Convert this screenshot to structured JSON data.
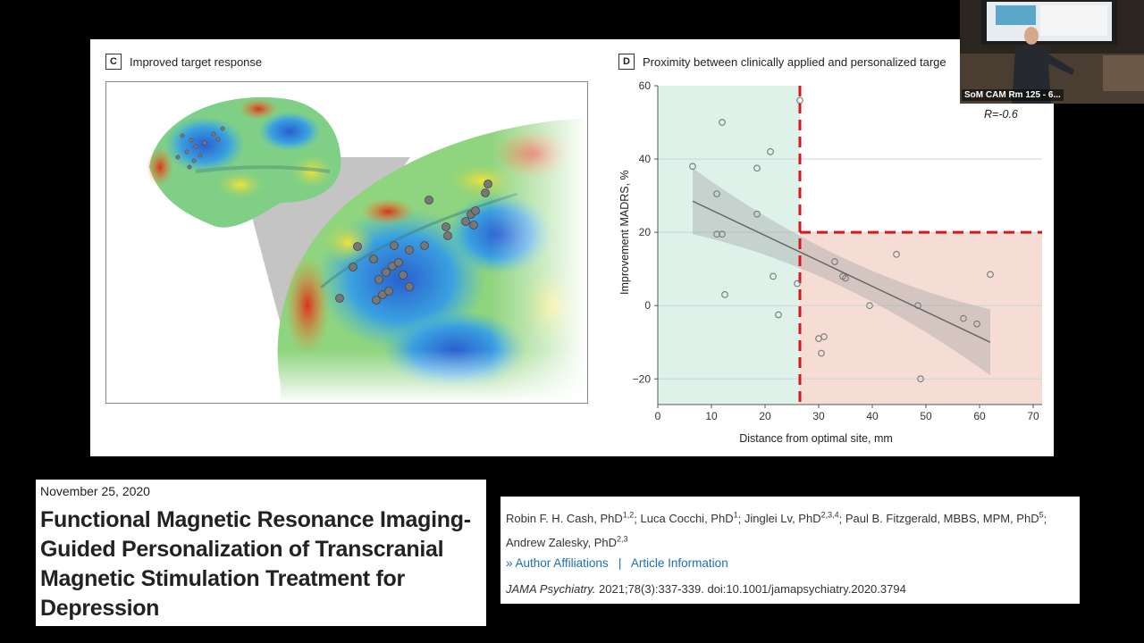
{
  "panel_c": {
    "letter": "C",
    "title": "Improved target response"
  },
  "panel_d": {
    "letter": "D",
    "title": "Proximity between clinically applied and personalized targe"
  },
  "chart_data": {
    "type": "scatter",
    "title": "Proximity between clinically applied and personalized targe",
    "xlabel": "Distance from optimal site, mm",
    "ylabel": "Improvement MADRS, %",
    "xlim": [
      0,
      70
    ],
    "ylim": [
      -27,
      60
    ],
    "xticks": [
      "0",
      "10",
      "20",
      "30",
      "40",
      "50",
      "60",
      "70"
    ],
    "yticks": [
      "-20",
      "0",
      "20",
      "40",
      "60"
    ],
    "grid": "horizontal",
    "annotation": "R=-0.6",
    "threshold_x": 26.5,
    "threshold_y": 20,
    "regression": {
      "x": [
        6.5,
        62
      ],
      "y": [
        28.5,
        -10
      ]
    },
    "points": [
      {
        "x": 6.5,
        "y": 38
      },
      {
        "x": 12,
        "y": 50
      },
      {
        "x": 11,
        "y": 30.5
      },
      {
        "x": 11,
        "y": 19.5
      },
      {
        "x": 12,
        "y": 19.5
      },
      {
        "x": 12.5,
        "y": 3
      },
      {
        "x": 18.5,
        "y": 37.5
      },
      {
        "x": 21,
        "y": 42
      },
      {
        "x": 18.5,
        "y": 25
      },
      {
        "x": 21.5,
        "y": 8
      },
      {
        "x": 22.5,
        "y": -2.5
      },
      {
        "x": 26,
        "y": 6
      },
      {
        "x": 26.5,
        "y": 56
      },
      {
        "x": 33,
        "y": 12
      },
      {
        "x": 34.5,
        "y": 8
      },
      {
        "x": 35,
        "y": 7.5
      },
      {
        "x": 30,
        "y": -9
      },
      {
        "x": 31,
        "y": -8.5
      },
      {
        "x": 30.5,
        "y": -13
      },
      {
        "x": 39.5,
        "y": 0
      },
      {
        "x": 44.5,
        "y": 14
      },
      {
        "x": 48.5,
        "y": 0
      },
      {
        "x": 49,
        "y": -20
      },
      {
        "x": 57,
        "y": -3.5
      },
      {
        "x": 59.5,
        "y": -5
      },
      {
        "x": 62,
        "y": 8.5
      }
    ]
  },
  "webcam": {
    "caption": "SoM CAM Rm 125 - 6..."
  },
  "article": {
    "date": "November 25, 2020",
    "title": "Functional Magnetic Resonance Imaging-Guided Personalization of Transcranial Magnetic Stimulation Treatment for Depression",
    "authors": [
      {
        "name": "Robin F. H. Cash, PhD",
        "sup": "1,2"
      },
      {
        "name": "Luca Cocchi, PhD",
        "sup": "1"
      },
      {
        "name": "Jinglei Lv, PhD",
        "sup": "2,3,4"
      },
      {
        "name": "Paul B. Fitzgerald, MBBS, MPM, PhD",
        "sup": "5"
      },
      {
        "name": "Andrew Zalesky, PhD",
        "sup": "2,3"
      }
    ],
    "affiliations_link": "Author Affiliations",
    "separator": "|",
    "info_link": "Article Information",
    "journal": "JAMA Psychiatry.",
    "citation": " 2021;78(3):337-339. doi:10.1001/jamapsychiatry.2020.3794"
  }
}
